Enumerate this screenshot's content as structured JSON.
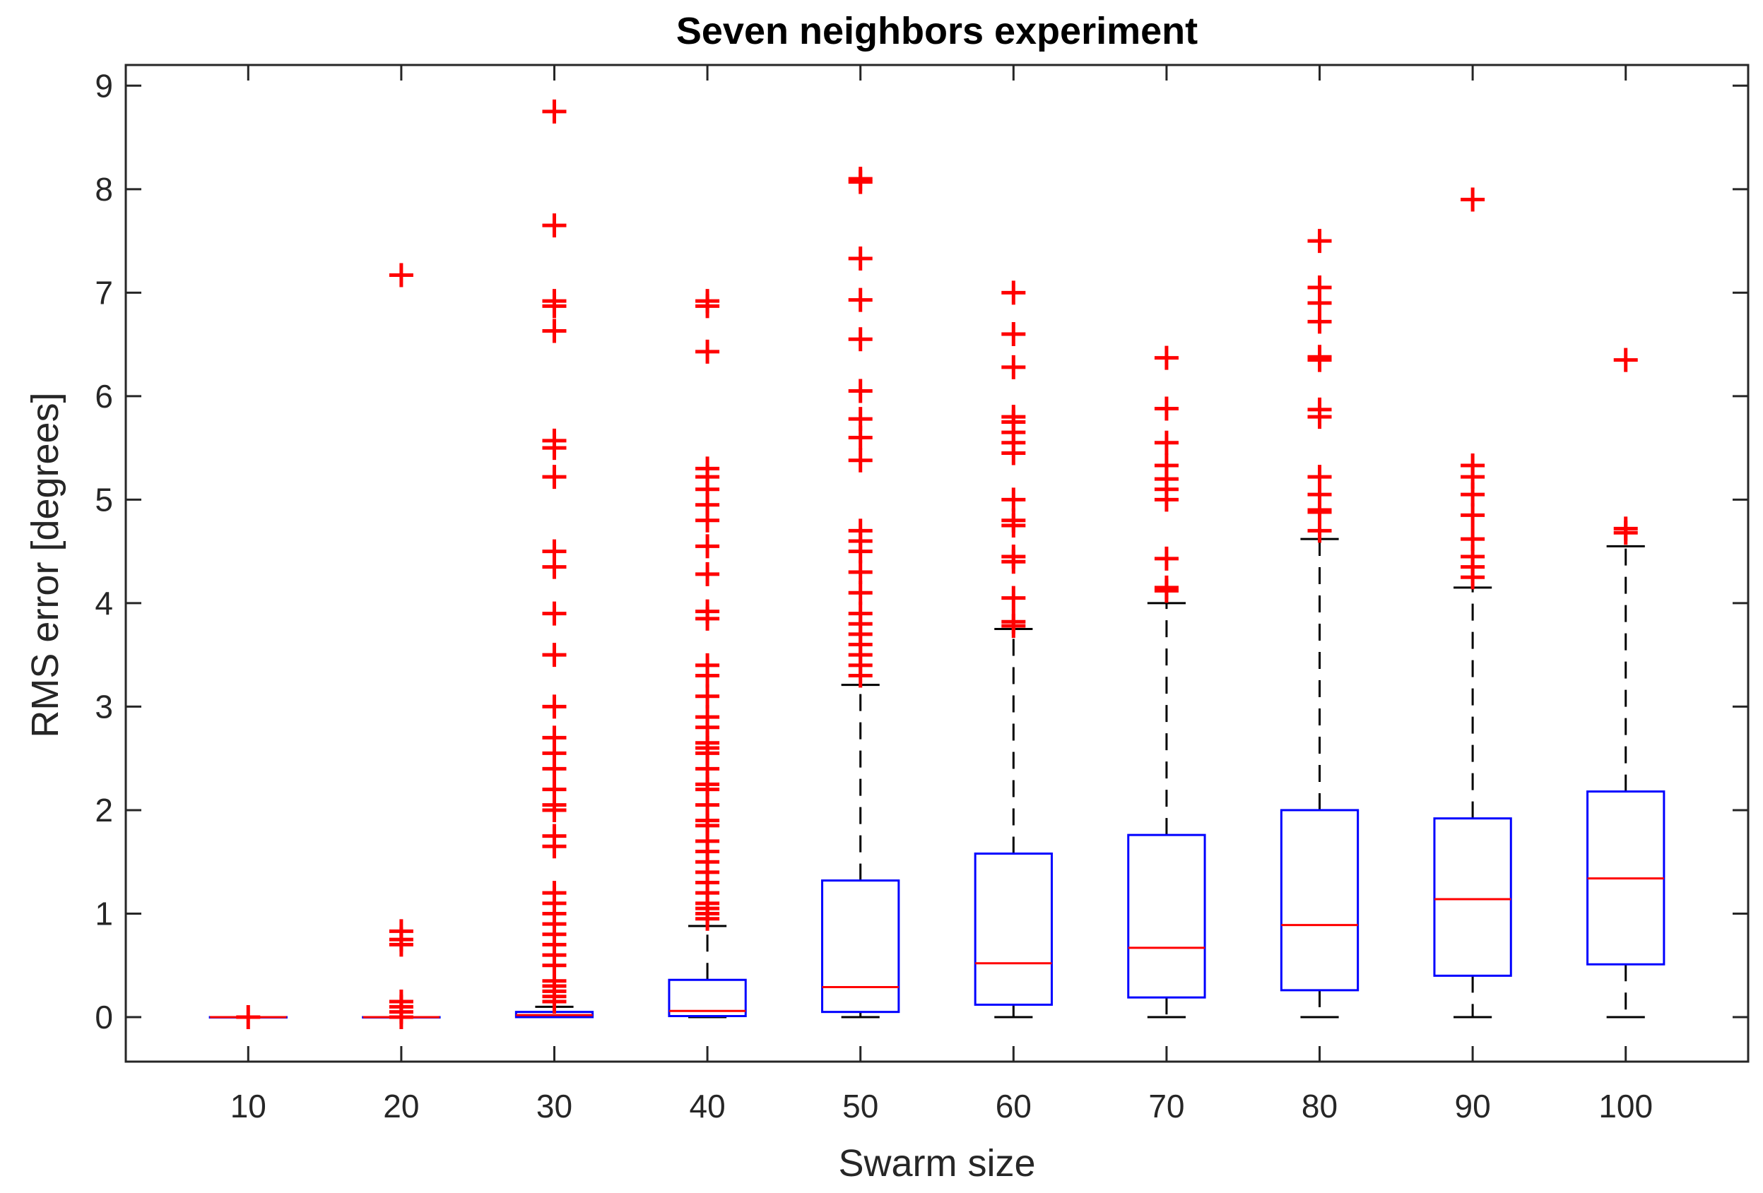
{
  "chart_data": {
    "type": "boxplot",
    "title": "Seven neighbors experiment",
    "xlabel": "Swarm size",
    "ylabel": "RMS error [degrees]",
    "ylim": [
      -0.43,
      9.2
    ],
    "yticks": [
      "0",
      "1",
      "2",
      "3",
      "4",
      "5",
      "6",
      "7",
      "8",
      "9"
    ],
    "categories": [
      "10",
      "20",
      "30",
      "40",
      "50",
      "60",
      "70",
      "80",
      "90",
      "100"
    ],
    "colors": {
      "box": "#0000ff",
      "median": "#ff0000",
      "whisker": "#000000",
      "outlier": "#ff0000",
      "axis": "#262626"
    },
    "boxes": [
      {
        "category": "10",
        "whisker_low": 0,
        "q1": 0,
        "median": 0,
        "q3": 0,
        "whisker_high": 0,
        "outliers": [
          0
        ]
      },
      {
        "category": "20",
        "whisker_low": 0,
        "q1": 0,
        "median": 0,
        "q3": 0,
        "whisker_high": 0,
        "outliers": [
          0,
          0.05,
          0.1,
          0.15,
          0.7,
          0.75,
          0.83,
          7.17
        ]
      },
      {
        "category": "30",
        "whisker_low": 0,
        "q1": 0,
        "median": 0.02,
        "q3": 0.05,
        "whisker_high": 0.1,
        "outliers": [
          0.15,
          0.2,
          0.25,
          0.3,
          0.35,
          0.5,
          0.6,
          0.7,
          0.8,
          0.9,
          1.0,
          1.1,
          1.2,
          1.65,
          1.75,
          2.0,
          2.05,
          2.2,
          2.4,
          2.55,
          2.7,
          3.0,
          3.5,
          3.9,
          4.35,
          4.5,
          5.22,
          5.5,
          5.57,
          6.63,
          6.87,
          6.92,
          7.65,
          8.75
        ]
      },
      {
        "category": "40",
        "whisker_low": 0,
        "q1": 0.01,
        "median": 0.06,
        "q3": 0.36,
        "whisker_high": 0.88,
        "outliers": [
          0.95,
          1.0,
          1.05,
          1.1,
          1.2,
          1.3,
          1.4,
          1.5,
          1.6,
          1.7,
          1.85,
          1.9,
          2.05,
          2.2,
          2.25,
          2.4,
          2.55,
          2.6,
          2.65,
          2.8,
          2.9,
          3.1,
          3.3,
          3.4,
          3.85,
          3.92,
          4.28,
          4.55,
          4.8,
          4.95,
          5.1,
          5.22,
          5.3,
          6.43,
          6.87,
          6.92
        ]
      },
      {
        "category": "50",
        "whisker_low": 0,
        "q1": 0.05,
        "median": 0.29,
        "q3": 1.32,
        "whisker_high": 3.21,
        "outliers": [
          3.3,
          3.4,
          3.5,
          3.6,
          3.7,
          3.8,
          3.9,
          4.1,
          4.3,
          4.5,
          4.6,
          4.7,
          5.38,
          5.6,
          5.78,
          6.05,
          6.55,
          6.93,
          7.33,
          8.07,
          8.1
        ]
      },
      {
        "category": "60",
        "whisker_low": 0,
        "q1": 0.12,
        "median": 0.52,
        "q3": 1.58,
        "whisker_high": 3.75,
        "outliers": [
          3.78,
          3.82,
          4.05,
          4.4,
          4.45,
          4.75,
          4.8,
          5.0,
          5.45,
          5.55,
          5.65,
          5.75,
          5.8,
          6.28,
          6.6,
          7.0
        ]
      },
      {
        "category": "70",
        "whisker_low": 0,
        "q1": 0.19,
        "median": 0.67,
        "q3": 1.76,
        "whisker_high": 4.0,
        "outliers": [
          4.12,
          4.15,
          4.43,
          5.0,
          5.1,
          5.2,
          5.33,
          5.55,
          5.88,
          6.37
        ]
      },
      {
        "category": "80",
        "whisker_low": 0,
        "q1": 0.26,
        "median": 0.89,
        "q3": 2.0,
        "whisker_high": 4.62,
        "outliers": [
          4.7,
          4.88,
          4.9,
          5.05,
          5.22,
          5.8,
          5.87,
          6.35,
          6.38,
          6.72,
          6.9,
          7.05,
          7.5
        ]
      },
      {
        "category": "90",
        "whisker_low": 0,
        "q1": 0.4,
        "median": 1.14,
        "q3": 1.92,
        "whisker_high": 4.15,
        "outliers": [
          4.25,
          4.35,
          4.45,
          4.62,
          4.85,
          5.05,
          5.22,
          5.33,
          7.9
        ]
      },
      {
        "category": "100",
        "whisker_low": 0,
        "q1": 0.51,
        "median": 1.34,
        "q3": 2.18,
        "whisker_high": 4.55,
        "outliers": [
          4.68,
          4.72,
          6.35
        ]
      }
    ]
  }
}
